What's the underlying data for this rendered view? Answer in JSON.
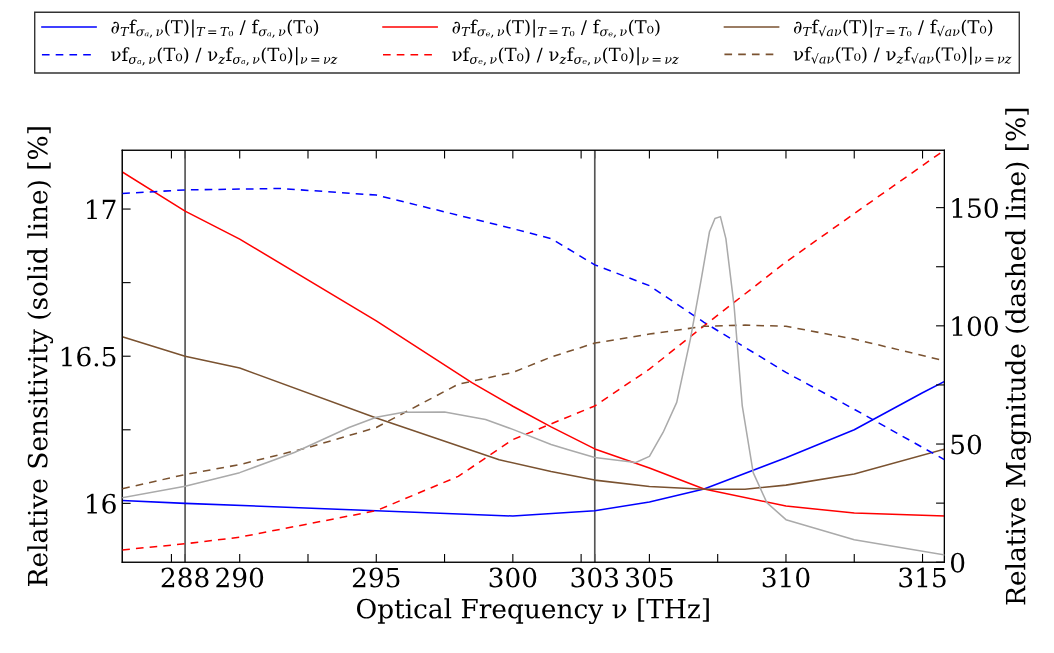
{
  "chart_data": {
    "type": "line",
    "xlabel": "Optical Frequency ν [THz]",
    "ylabel": "Relative Sensitivity (solid line) [%]",
    "y2label": "Relative Magnitude (dashed line) [%]",
    "xlim": [
      285.7,
      315.8
    ],
    "ylim": [
      15.8,
      17.2
    ],
    "y2lim": [
      0,
      174.3
    ],
    "xticks": [
      {
        "value": 287.5,
        "label": null
      },
      288,
      290,
      {
        "value": 292.5,
        "label": null
      },
      295,
      {
        "value": 297.5,
        "label": null
      },
      300,
      {
        "value": 302.5,
        "label": null
      },
      303,
      305,
      {
        "value": 307.5,
        "label": null
      },
      310,
      {
        "value": 312.5,
        "label": null
      },
      315
    ],
    "yticks": [
      16,
      {
        "value": 16.25,
        "label": null
      },
      16.5,
      {
        "value": 16.75,
        "label": null
      },
      17
    ],
    "y2ticks": [
      0,
      {
        "value": 25,
        "label": null
      },
      50,
      {
        "value": 75,
        "label": null
      },
      100,
      {
        "value": 125,
        "label": null
      },
      150
    ],
    "legend": "top",
    "grid": false,
    "marker": "none",
    "ref_lines": [
      {
        "axis": "x",
        "value": 288,
        "color": "#555555"
      },
      {
        "axis": "x",
        "value": 303,
        "color": "#555555"
      }
    ],
    "series": [
      {
        "name": "∂$_{T}$f$_{σₐ,ν}$(T)|$_{T=T₀}$ / f$_{σₐ,ν}$(T₀)",
        "color": "#0000ff",
        "line_style": "solid",
        "x": [
          285.7,
          288,
          295,
          300,
          303,
          305,
          307,
          310,
          312.5,
          315,
          315.8
        ],
        "values": [
          16.01,
          16.0,
          15.975,
          15.957,
          15.975,
          16.005,
          16.049,
          16.155,
          16.25,
          16.376,
          16.414
        ]
      },
      {
        "name": "∂$_{T}$f$_{σₑ,ν}$(T)|$_{T=T₀}$ / f$_{σₑ,ν}$(T₀)",
        "color": "#ff0000",
        "line_style": "solid",
        "x": [
          285.7,
          288,
          290,
          295,
          298.5,
          300,
          301.4,
          303,
          305,
          307,
          310,
          312.5,
          315.8
        ],
        "values": [
          17.126,
          16.993,
          16.898,
          16.62,
          16.41,
          16.33,
          16.26,
          16.185,
          16.12,
          16.049,
          15.991,
          15.967,
          15.957
        ]
      },
      {
        "name": "∂$_{T}$f$_{√aν}$(T)|$_{T=T₀}$ / f$_{√aν}$(T₀)",
        "color": "#7a5230",
        "line_style": "solid",
        "x": [
          285.7,
          288,
          290,
          295,
          299.5,
          301.4,
          303,
          305,
          307,
          308.5,
          310,
          312.5,
          315.8
        ],
        "values": [
          16.566,
          16.5,
          16.46,
          16.29,
          16.148,
          16.108,
          16.079,
          16.057,
          16.048,
          16.048,
          16.062,
          16.1,
          16.184
        ]
      },
      {
        "name": "νf$_{σₐ,ν}$(T₀) / ν$_{z}$f$_{σₐ,ν}$(T₀)|$_{ν=νz}$",
        "color": "#0000ff",
        "line_style": "dashed",
        "axis": "y2",
        "x": [
          285.7,
          288,
          291.5,
          295,
          298,
          300,
          301.4,
          303,
          305,
          307,
          310,
          312.5,
          315.8
        ],
        "values": [
          156.0,
          157.5,
          158.1,
          155.3,
          146.8,
          141.1,
          136.9,
          125.8,
          117.0,
          101.5,
          80.3,
          64.7,
          43.4
        ]
      },
      {
        "name": "νf$_{σₑ,ν}$(T₀) / ν$_{z}$f$_{σₑ,ν}$(T₀)|$_{ν=νz}$",
        "color": "#ff0000",
        "line_style": "dashed",
        "axis": "y2",
        "x": [
          285.7,
          288,
          290,
          295,
          298,
          300,
          303,
          305,
          307,
          310,
          312.5,
          315.8
        ],
        "values": [
          5.2,
          7.8,
          10.6,
          21.8,
          36.3,
          51.9,
          66.1,
          81.7,
          100,
          127,
          147.5,
          174.3
        ]
      },
      {
        "name": "νf$_{√aν}$(T₀) / ν$_{z}$f$_{√aν}$(T₀)|$_{ν=νz}$",
        "color": "#7a5230",
        "line_style": "dashed",
        "axis": "y2",
        "x": [
          285.7,
          288,
          290,
          292.5,
          295,
          298,
          300,
          301.4,
          303,
          305,
          307,
          308.5,
          310,
          312.5,
          315.8
        ],
        "values": [
          31.1,
          37.1,
          41.3,
          48.5,
          57,
          75.3,
          80.3,
          86.8,
          92.7,
          96.5,
          99.8,
          100.3,
          99.8,
          94.4,
          85.2
        ]
      },
      {
        "color": "#aaaaaa",
        "line_style": "solid",
        "axis": "y2",
        "x": [
          285.7,
          288,
          290,
          292,
          294,
          295,
          296,
          297.5,
          299,
          300,
          301.4,
          302,
          303,
          304.5,
          305,
          305.5,
          306,
          306.5,
          306.9,
          307.2,
          307.4,
          307.6,
          307.8,
          308.1,
          308.4,
          308.8,
          309.3,
          310,
          312.5,
          315.8
        ],
        "values": [
          27.3,
          32.1,
          37.9,
          46.4,
          57,
          61.3,
          63.4,
          63.5,
          60.4,
          56.2,
          49.8,
          47.7,
          44.3,
          42.2,
          44.8,
          54.9,
          67.6,
          94.4,
          119.9,
          139.8,
          145.4,
          146.2,
          136.9,
          108.5,
          66.1,
          37.9,
          25.2,
          18,
          9.5,
          3.1
        ]
      }
    ]
  }
}
